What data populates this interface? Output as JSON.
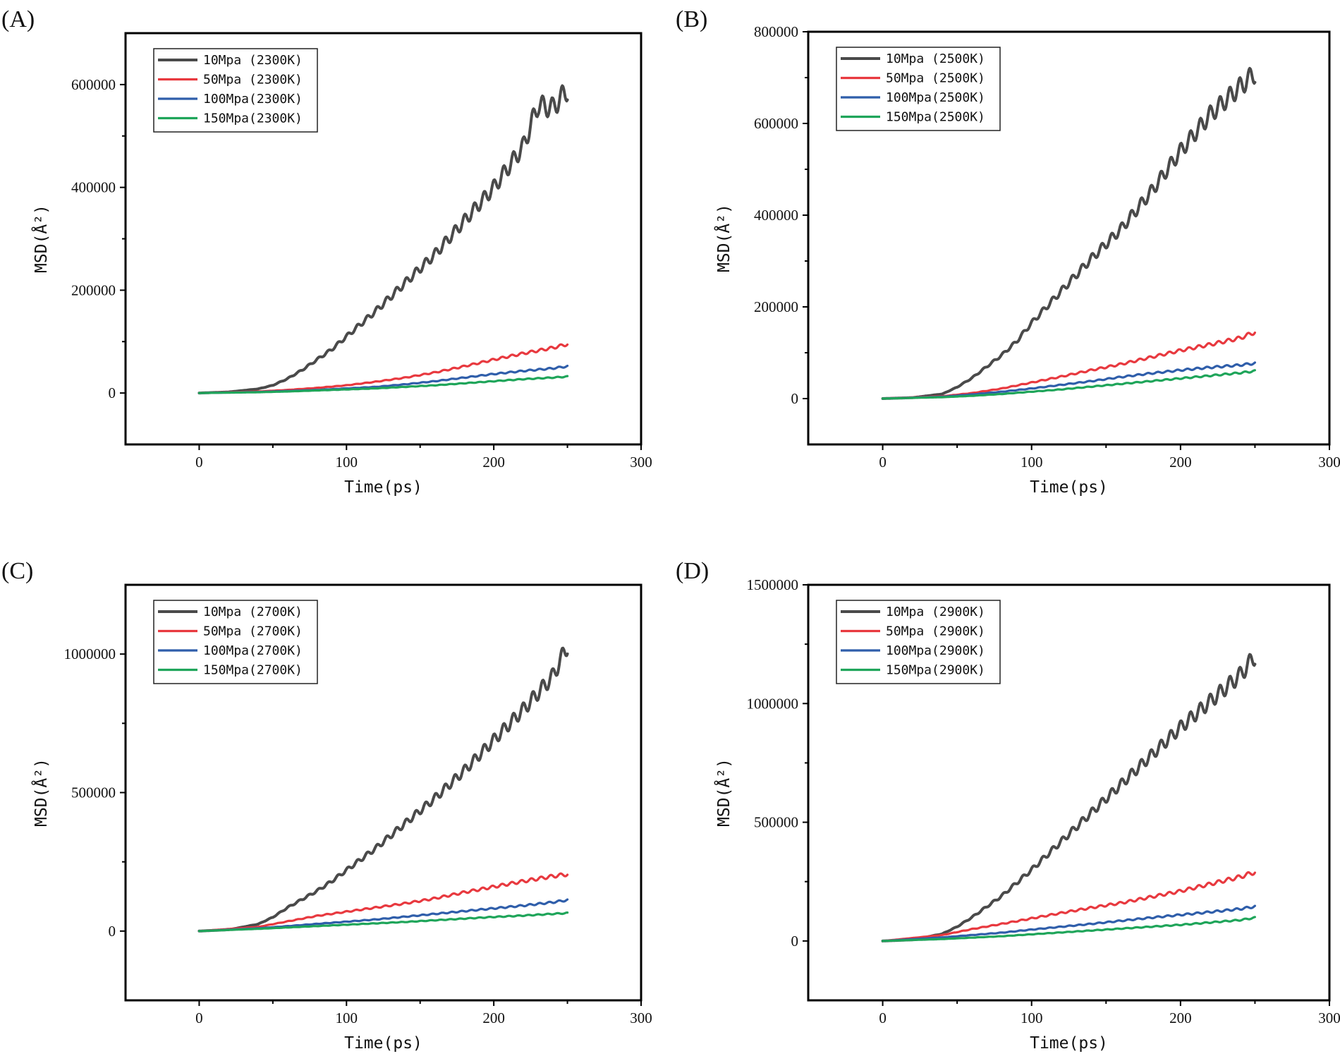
{
  "chart_data": [
    {
      "type": "line",
      "panel_label": "(A)",
      "xlabel": "Time(ps)",
      "ylabel": "MSD(Å²)",
      "xlim": [
        -50,
        300
      ],
      "ylim": [
        -100000,
        700000
      ],
      "xticks": [
        0,
        100,
        200,
        300
      ],
      "yticks": [
        0,
        200000,
        400000,
        600000
      ],
      "legend_position": "top-left",
      "series": [
        {
          "name": "10Mpa (2300K)",
          "color": "#4a4a4a",
          "x": [
            0,
            20,
            40,
            50,
            60,
            70,
            80,
            90,
            100,
            120,
            140,
            160,
            180,
            200,
            220,
            230,
            240,
            250
          ],
          "values": [
            0,
            2000,
            8000,
            15000,
            28000,
            45000,
            65000,
            85000,
            110000,
            160000,
            215000,
            270000,
            335000,
            400000,
            480000,
            560000,
            555000,
            590000
          ],
          "wobble": 0.035
        },
        {
          "name": "50Mpa (2300K)",
          "color": "#e8393f",
          "x": [
            0,
            40,
            60,
            80,
            100,
            120,
            140,
            160,
            180,
            200,
            220,
            240,
            250
          ],
          "values": [
            0,
            3000,
            6000,
            10000,
            15000,
            22000,
            30000,
            40000,
            52000,
            65000,
            77000,
            88000,
            95000
          ],
          "wobble": 0.03
        },
        {
          "name": "100Mpa(2300K)",
          "color": "#2f5eaa",
          "x": [
            0,
            40,
            60,
            80,
            100,
            120,
            140,
            160,
            180,
            200,
            220,
            240,
            250
          ],
          "values": [
            0,
            2000,
            4000,
            6000,
            9000,
            12000,
            17000,
            23000,
            30000,
            37000,
            43000,
            48000,
            52000
          ],
          "wobble": 0.03
        },
        {
          "name": "150Mpa(2300K)",
          "color": "#1fa55a",
          "x": [
            0,
            40,
            60,
            80,
            100,
            120,
            140,
            160,
            180,
            200,
            220,
            240,
            250
          ],
          "values": [
            0,
            1500,
            3000,
            5000,
            7000,
            9000,
            12000,
            15000,
            19000,
            23000,
            27000,
            30000,
            32000
          ],
          "wobble": 0.03
        }
      ]
    },
    {
      "type": "line",
      "panel_label": "(B)",
      "xlabel": "Time(ps)",
      "ylabel": "MSD(Å²)",
      "xlim": [
        -50,
        300
      ],
      "ylim": [
        -100000,
        800000
      ],
      "xticks": [
        0,
        100,
        200,
        300
      ],
      "yticks": [
        0,
        200000,
        400000,
        600000,
        800000
      ],
      "legend_position": "top-left",
      "series": [
        {
          "name": "10Mpa (2500K)",
          "color": "#4a4a4a",
          "x": [
            0,
            20,
            40,
            50,
            60,
            70,
            80,
            90,
            100,
            120,
            140,
            160,
            180,
            200,
            220,
            240,
            250
          ],
          "values": [
            0,
            2000,
            10000,
            25000,
            45000,
            70000,
            95000,
            125000,
            165000,
            235000,
            305000,
            370000,
            450000,
            540000,
            620000,
            680000,
            710000
          ],
          "wobble": 0.03
        },
        {
          "name": "50Mpa (2500K)",
          "color": "#e8393f",
          "x": [
            0,
            40,
            60,
            80,
            100,
            120,
            140,
            160,
            180,
            200,
            220,
            240,
            250
          ],
          "values": [
            0,
            5000,
            12000,
            22000,
            35000,
            48000,
            62000,
            75000,
            90000,
            105000,
            118000,
            132000,
            145000
          ],
          "wobble": 0.03
        },
        {
          "name": "100Mpa(2500K)",
          "color": "#2f5eaa",
          "x": [
            0,
            40,
            60,
            80,
            100,
            120,
            140,
            160,
            180,
            200,
            220,
            240,
            250
          ],
          "values": [
            0,
            4000,
            9000,
            15000,
            22000,
            30000,
            38000,
            47000,
            55000,
            62000,
            68000,
            73000,
            77000
          ],
          "wobble": 0.03
        },
        {
          "name": "150Mpa(2500K)",
          "color": "#1fa55a",
          "x": [
            0,
            40,
            60,
            80,
            100,
            120,
            140,
            160,
            180,
            200,
            220,
            240,
            250
          ],
          "values": [
            0,
            3000,
            6000,
            10000,
            15000,
            20000,
            26000,
            32000,
            38000,
            44000,
            50000,
            56000,
            60000
          ],
          "wobble": 0.03
        }
      ]
    },
    {
      "type": "line",
      "panel_label": "(C)",
      "xlabel": "Time(ps)",
      "ylabel": "MSD(Å²)",
      "xlim": [
        -50,
        300
      ],
      "ylim": [
        -250000,
        1250000
      ],
      "xticks": [
        0,
        100,
        200,
        300
      ],
      "yticks": [
        0,
        500000,
        1000000
      ],
      "legend_position": "top-left",
      "series": [
        {
          "name": "10Mpa (2700K)",
          "color": "#4a4a4a",
          "x": [
            0,
            20,
            40,
            50,
            60,
            70,
            80,
            90,
            100,
            120,
            140,
            160,
            180,
            200,
            220,
            240,
            250
          ],
          "values": [
            0,
            5000,
            25000,
            50000,
            85000,
            115000,
            145000,
            180000,
            220000,
            300000,
            390000,
            480000,
            580000,
            690000,
            800000,
            920000,
            1030000
          ],
          "wobble": 0.03
        },
        {
          "name": "50Mpa (2700K)",
          "color": "#e8393f",
          "x": [
            0,
            40,
            60,
            80,
            100,
            120,
            140,
            160,
            180,
            200,
            220,
            240,
            250
          ],
          "values": [
            0,
            15000,
            35000,
            55000,
            70000,
            85000,
            100000,
            118000,
            140000,
            160000,
            180000,
            198000,
            205000
          ],
          "wobble": 0.03
        },
        {
          "name": "100Mpa(2700K)",
          "color": "#2f5eaa",
          "x": [
            0,
            40,
            60,
            80,
            100,
            120,
            140,
            160,
            180,
            200,
            220,
            240,
            250
          ],
          "values": [
            0,
            10000,
            18000,
            26000,
            34000,
            42000,
            52000,
            62000,
            72000,
            82000,
            92000,
            104000,
            112000
          ],
          "wobble": 0.03
        },
        {
          "name": "150Mpa(2700K)",
          "color": "#1fa55a",
          "x": [
            0,
            40,
            60,
            80,
            100,
            120,
            140,
            160,
            180,
            200,
            220,
            240,
            250
          ],
          "values": [
            0,
            8000,
            13000,
            18000,
            23000,
            28000,
            33000,
            39000,
            45000,
            51000,
            56000,
            62000,
            65000
          ],
          "wobble": 0.03
        }
      ]
    },
    {
      "type": "line",
      "panel_label": "(D)",
      "xlabel": "Time(ps)",
      "ylabel": "MSD(Å²)",
      "xlim": [
        -50,
        300
      ],
      "ylim": [
        -250000,
        1500000
      ],
      "xticks": [
        0,
        100,
        200,
        300
      ],
      "yticks": [
        0,
        500000,
        1000000,
        1500000
      ],
      "legend_position": "top-left",
      "series": [
        {
          "name": "10Mpa (2900K)",
          "color": "#4a4a4a",
          "x": [
            0,
            20,
            40,
            50,
            60,
            70,
            80,
            90,
            100,
            120,
            140,
            160,
            180,
            200,
            220,
            240,
            250
          ],
          "values": [
            0,
            5000,
            30000,
            60000,
            100000,
            145000,
            190000,
            245000,
            300000,
            420000,
            540000,
            660000,
            780000,
            900000,
            1010000,
            1120000,
            1200000
          ],
          "wobble": 0.03
        },
        {
          "name": "50Mpa (2900K)",
          "color": "#e8393f",
          "x": [
            0,
            40,
            60,
            80,
            100,
            120,
            140,
            160,
            180,
            200,
            220,
            240,
            250
          ],
          "values": [
            0,
            25000,
            50000,
            72000,
            95000,
            118000,
            140000,
            160000,
            185000,
            210000,
            240000,
            270000,
            290000
          ],
          "wobble": 0.03
        },
        {
          "name": "100Mpa(2900K)",
          "color": "#2f5eaa",
          "x": [
            0,
            40,
            60,
            80,
            100,
            120,
            140,
            160,
            180,
            200,
            220,
            240,
            250
          ],
          "values": [
            0,
            15000,
            25000,
            35000,
            48000,
            60000,
            72000,
            85000,
            98000,
            110000,
            122000,
            135000,
            145000
          ],
          "wobble": 0.03
        },
        {
          "name": "150Mpa(2900K)",
          "color": "#1fa55a",
          "x": [
            0,
            40,
            60,
            80,
            100,
            120,
            140,
            160,
            180,
            200,
            220,
            240,
            250
          ],
          "values": [
            0,
            8000,
            14000,
            20000,
            28000,
            36000,
            44000,
            52000,
            60000,
            68000,
            78000,
            88000,
            98000
          ],
          "wobble": 0.03
        }
      ]
    }
  ]
}
